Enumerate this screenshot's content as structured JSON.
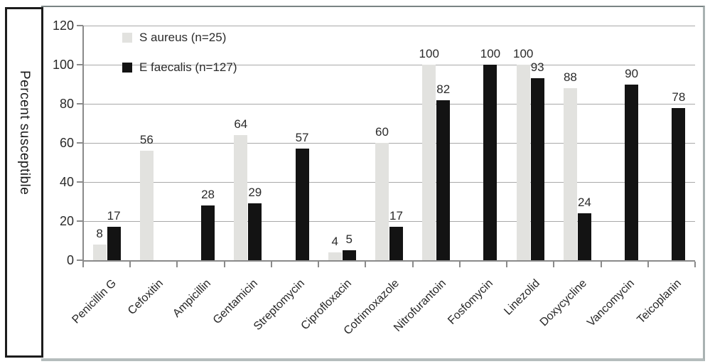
{
  "chart_data": {
    "type": "bar",
    "title": "",
    "xlabel": "",
    "ylabel": "Percent susceptible",
    "ylim": [
      0,
      120
    ],
    "ytick_step": 20,
    "yticks": [
      0,
      20,
      40,
      60,
      80,
      100,
      120
    ],
    "grid": true,
    "legend_position": "top-left-inside",
    "categories": [
      "Penicillin G",
      "Cefoxitin",
      "Ampicillin",
      "Gentamicin",
      "Streptomycin",
      "Ciprofloxacin",
      "Cotrimoxazole",
      "Nitrofurantoin",
      "Fosfomycin",
      "Linezolid",
      "Doxycycline",
      "Vancomycin",
      "Teicoplanin"
    ],
    "series": [
      {
        "name": "S aureus (n=25)",
        "color": "#e2e2df",
        "values": [
          8,
          56,
          null,
          64,
          null,
          4,
          60,
          100,
          null,
          100,
          88,
          null,
          null
        ]
      },
      {
        "name": "E faecalis (n=127)",
        "color": "#131313",
        "values": [
          17,
          null,
          28,
          29,
          57,
          5,
          17,
          82,
          100,
          93,
          24,
          90,
          78
        ]
      }
    ],
    "colors": {
      "gridline": "#a9a9a9",
      "axis": "#8a8a8a",
      "text": "#2a2a2a",
      "frame_top": "#7a8484",
      "frame_bottom": "#b5bdbd"
    }
  }
}
